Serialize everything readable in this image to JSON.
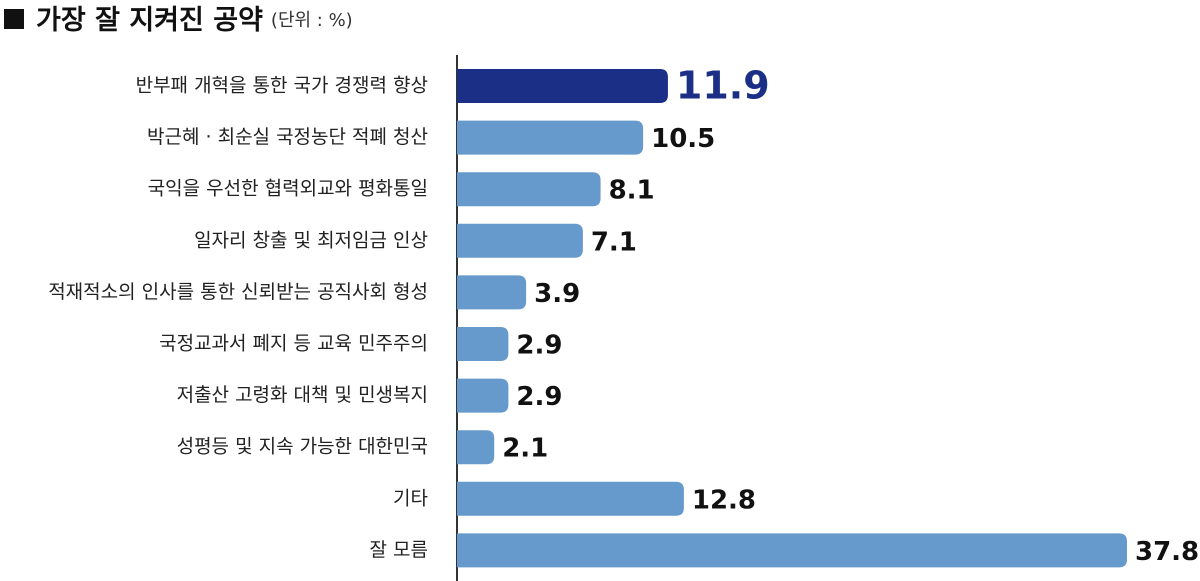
{
  "chart_data": {
    "type": "bar",
    "orientation": "horizontal",
    "title": "가장 잘 지켜진 공약",
    "subtitle": "(단위 : %)",
    "categories": [
      "반부패 개혁을 통한 국가 경쟁력 향상",
      "박근혜 · 최순실 국정농단 적폐 청산",
      "국익을 우선한 협력외교와 평화통일",
      "일자리 창출 및 최저임금 인상",
      "적재적소의 인사를 통한 신뢰받는 공직사회 형성",
      "국정교과서 폐지 등 교육 민주주의",
      "저출산 고령화 대책 및 민생복지",
      "성평등 및 지속 가능한 대한민국",
      "기타",
      "잘 모름"
    ],
    "values": [
      11.9,
      10.5,
      8.1,
      7.1,
      3.9,
      2.9,
      2.9,
      2.1,
      12.8,
      37.8
    ],
    "colors": [
      "#1b2f87",
      "#6699cc",
      "#6699cc",
      "#6699cc",
      "#6699cc",
      "#6699cc",
      "#6699cc",
      "#6699cc",
      "#6699cc",
      "#6699cc"
    ]
  }
}
